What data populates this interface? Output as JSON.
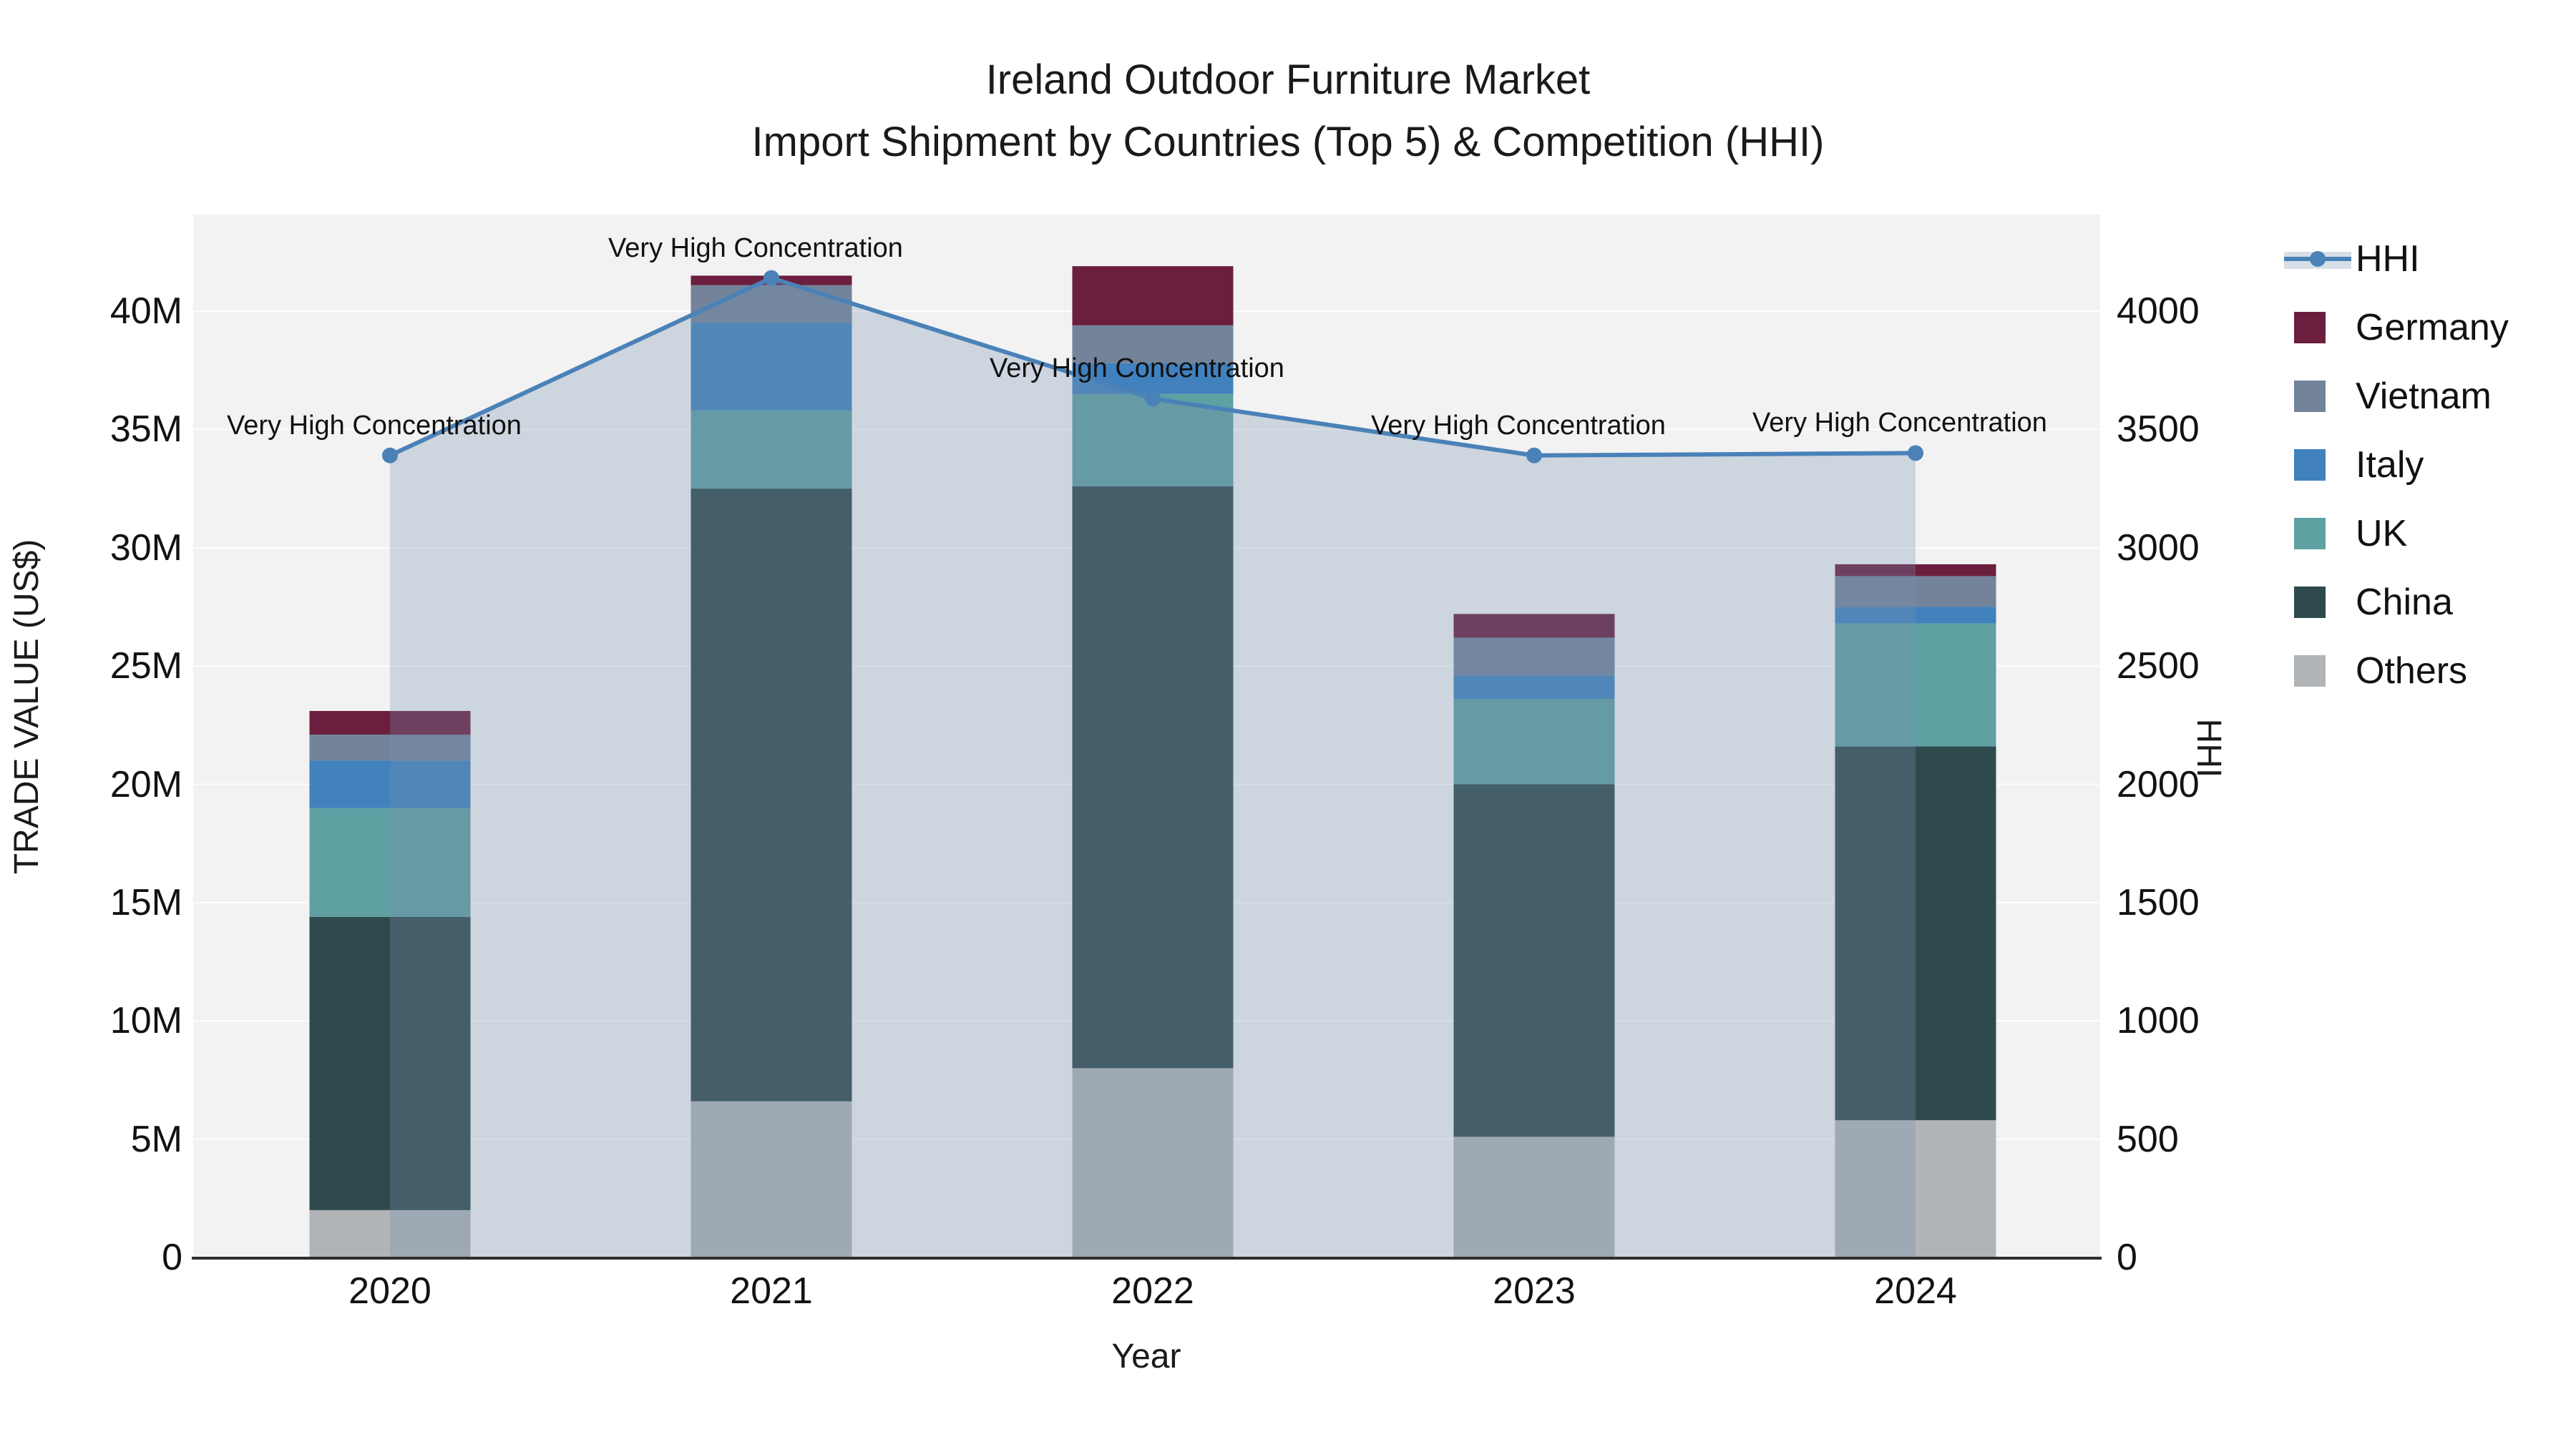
{
  "title": {
    "line1": "Ireland Outdoor Furniture Market",
    "line2": "Import Shipment by Countries (Top 5) & Competition (HHI)"
  },
  "axes": {
    "x": {
      "title": "Year",
      "ticks": [
        "2020",
        "2021",
        "2022",
        "2023",
        "2024"
      ]
    },
    "y_left": {
      "title": "TRADE VALUE (US$)",
      "ticks": [
        "0",
        "5M",
        "10M",
        "15M",
        "20M",
        "25M",
        "30M",
        "35M",
        "40M"
      ],
      "tick_values_musd": [
        0,
        5,
        10,
        15,
        20,
        25,
        30,
        35,
        40
      ]
    },
    "y_right": {
      "title": "HHI",
      "ticks": [
        "0",
        "500",
        "1000",
        "1500",
        "2000",
        "2500",
        "3000",
        "3500",
        "4000"
      ],
      "tick_values": [
        0,
        500,
        1000,
        1500,
        2000,
        2500,
        3000,
        3500,
        4000
      ]
    }
  },
  "legend": {
    "items": [
      {
        "label": "HHI",
        "type": "line",
        "color": "#4A82B8"
      },
      {
        "label": "Germany",
        "type": "square",
        "color": "#6B1E3E"
      },
      {
        "label": "Vietnam",
        "type": "square",
        "color": "#72839A"
      },
      {
        "label": "Italy",
        "type": "square",
        "color": "#4181BE"
      },
      {
        "label": "UK",
        "type": "square",
        "color": "#5FA0A2"
      },
      {
        "label": "China",
        "type": "square",
        "color": "#2E4A4C"
      },
      {
        "label": "Others",
        "type": "square",
        "color": "#B1B4B6"
      }
    ]
  },
  "chart_data": {
    "type": "bar+line",
    "title": "Ireland Outdoor Furniture Market — Import Shipment by Countries (Top 5) & Competition (HHI)",
    "xlabel": "Year",
    "ylabel_left": "TRADE VALUE (US$)",
    "ylabel_right": "HHI",
    "categories": [
      "2020",
      "2021",
      "2022",
      "2023",
      "2024"
    ],
    "bar_unit": "million US$",
    "stack_order_bottom_to_top": [
      "Others",
      "China",
      "UK",
      "Italy",
      "Vietnam",
      "Germany"
    ],
    "series": [
      {
        "name": "Others",
        "color": "#B1B4B6",
        "values": [
          2.0,
          6.6,
          8.0,
          5.1,
          5.8
        ]
      },
      {
        "name": "China",
        "color": "#2E4A4C",
        "values": [
          12.4,
          25.9,
          24.6,
          14.9,
          15.8
        ]
      },
      {
        "name": "UK",
        "color": "#5FA0A2",
        "values": [
          4.6,
          3.3,
          3.9,
          3.6,
          5.2
        ]
      },
      {
        "name": "Italy",
        "color": "#4181BE",
        "values": [
          2.0,
          3.7,
          1.3,
          1.0,
          0.7
        ]
      },
      {
        "name": "Vietnam",
        "color": "#72839A",
        "values": [
          1.1,
          1.6,
          1.6,
          1.6,
          1.3
        ]
      },
      {
        "name": "Germany",
        "color": "#6B1E3E",
        "values": [
          1.0,
          0.4,
          2.5,
          1.0,
          0.5
        ]
      }
    ],
    "bar_totals_musd": [
      23.1,
      41.5,
      41.9,
      27.2,
      29.3
    ],
    "line_series": {
      "name": "HHI",
      "axis": "right",
      "color": "#4A82B8",
      "area_fill_color": "rgba(120,145,175,0.30)",
      "values": [
        3390,
        4140,
        3630,
        3390,
        3400
      ]
    },
    "annotations": [
      {
        "x": "2020",
        "text": "Very High Concentration"
      },
      {
        "x": "2021",
        "text": "Very High Concentration"
      },
      {
        "x": "2022",
        "text": "Very High Concentration"
      },
      {
        "x": "2023",
        "text": "Very High Concentration"
      },
      {
        "x": "2024",
        "text": "Very High Concentration"
      }
    ],
    "ylim_left_musd": [
      0,
      44.1
    ],
    "ylim_right": [
      0,
      4410
    ],
    "grid": true,
    "legend_position": "right"
  },
  "colors": {
    "plot_bg": "#F2F2F3",
    "gridline": "rgba(255,255,255,0.9)",
    "axis_line": "#2E2E2E",
    "text": "#121212"
  }
}
